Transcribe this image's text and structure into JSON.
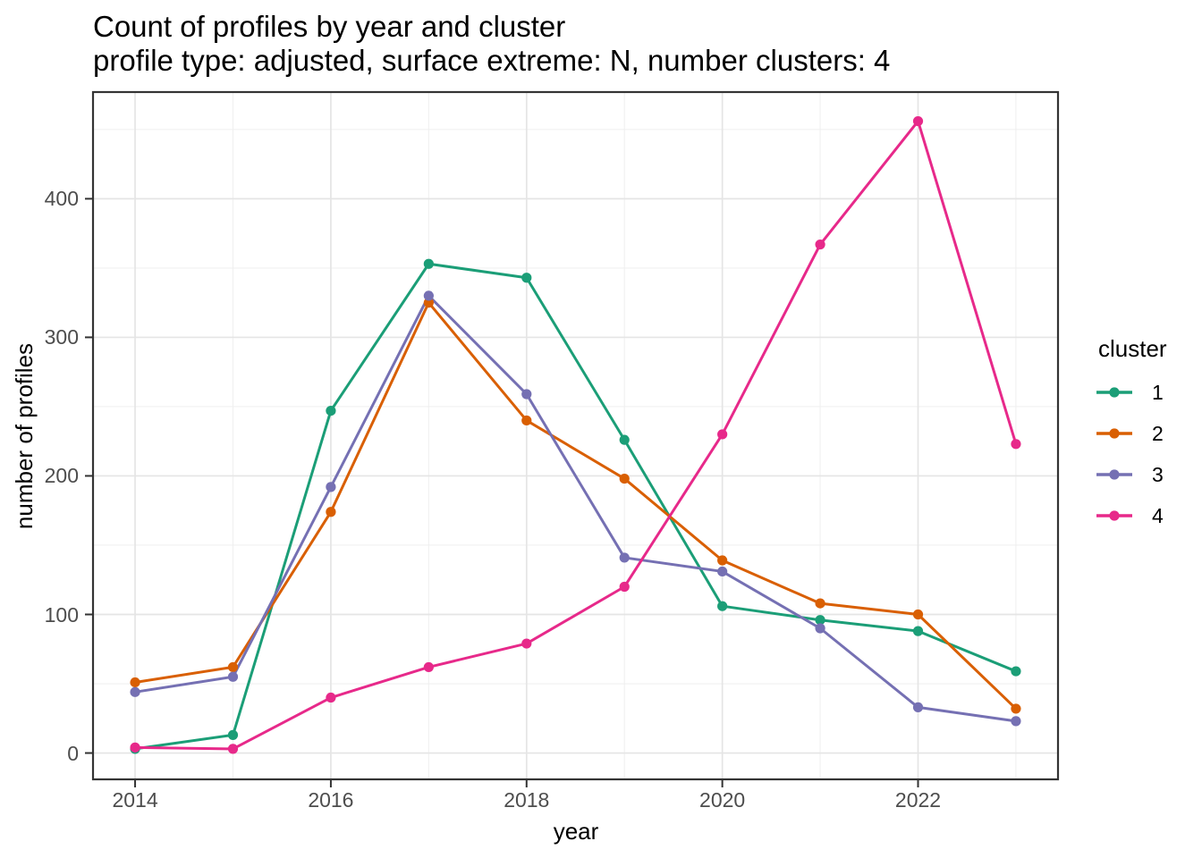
{
  "header": {
    "title": "Count of profiles by year and cluster",
    "subtitle": "profile type: adjusted, surface extreme: N, number clusters: 4"
  },
  "axes": {
    "x": {
      "label": "year",
      "tick_labels": [
        "2014",
        "2016",
        "2018",
        "2020",
        "2022"
      ]
    },
    "y": {
      "label": "number of profiles",
      "tick_labels": [
        "0",
        "100",
        "200",
        "300",
        "400"
      ]
    }
  },
  "legend": {
    "title": "cluster",
    "items": [
      {
        "label": "1",
        "color": "#1B9E77"
      },
      {
        "label": "2",
        "color": "#D95F02"
      },
      {
        "label": "3",
        "color": "#7570B3"
      },
      {
        "label": "4",
        "color": "#E7298A"
      }
    ]
  },
  "chart_data": {
    "type": "line",
    "title": "Count of profiles by year and cluster",
    "subtitle": "profile type: adjusted, surface extreme: N, number clusters: 4",
    "xlabel": "year",
    "ylabel": "number of profiles",
    "x": [
      2014,
      2015,
      2016,
      2017,
      2018,
      2019,
      2020,
      2021,
      2022,
      2023
    ],
    "series": [
      {
        "name": "1",
        "color": "#1B9E77",
        "values": [
          3,
          13,
          247,
          353,
          343,
          226,
          106,
          96,
          88,
          59
        ]
      },
      {
        "name": "2",
        "color": "#D95F02",
        "values": [
          51,
          62,
          174,
          325,
          240,
          198,
          139,
          108,
          100,
          32
        ]
      },
      {
        "name": "3",
        "color": "#7570B3",
        "values": [
          44,
          55,
          192,
          330,
          259,
          141,
          131,
          90,
          33,
          23
        ]
      },
      {
        "name": "4",
        "color": "#E7298A",
        "values": [
          4,
          3,
          40,
          62,
          79,
          120,
          230,
          367,
          456,
          223
        ]
      }
    ],
    "xlim": [
      2013.57,
      2023.43
    ],
    "ylim": [
      -19,
      477
    ],
    "x_major_ticks": [
      2014,
      2016,
      2018,
      2020,
      2022
    ],
    "x_minor_ticks": [
      2015,
      2017,
      2019,
      2021,
      2023
    ],
    "y_major_ticks": [
      0,
      100,
      200,
      300,
      400
    ],
    "y_minor_ticks": [
      50,
      150,
      250,
      350,
      450
    ],
    "grid": true,
    "legend_position": "right"
  },
  "style": {
    "grid_major_color": "#e5e5e5",
    "grid_minor_color": "#f0f0f0",
    "panel_border_color": "#343434",
    "tick_color": "#333333"
  }
}
